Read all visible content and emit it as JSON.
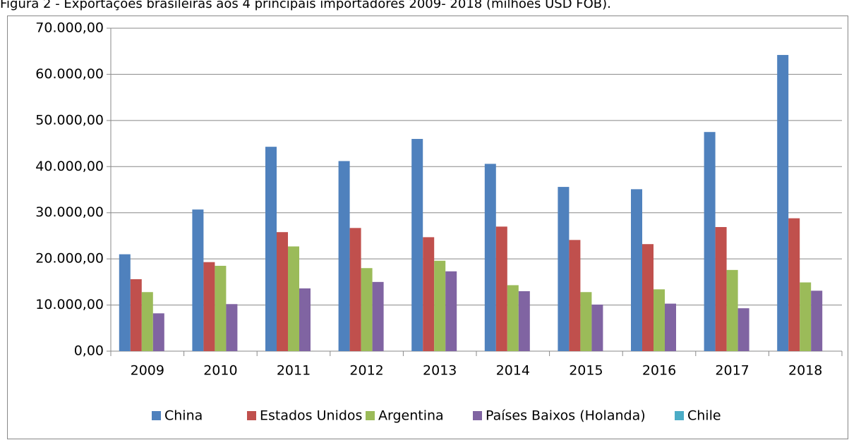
{
  "chart_data": {
    "type": "bar",
    "title": "Figura 2 - Exportações brasileiras aos 4 principais importadores 2009- 2018 (milhões USD FOB).",
    "categories": [
      "2009",
      "2010",
      "2011",
      "2012",
      "2013",
      "2014",
      "2015",
      "2016",
      "2017",
      "2018"
    ],
    "series": [
      {
        "name": "China",
        "color": "#4f81bd",
        "values": [
          21000,
          30700,
          44300,
          41200,
          46000,
          40600,
          35600,
          35100,
          47500,
          64200
        ]
      },
      {
        "name": "Estados Unidos",
        "color": "#c0504d",
        "values": [
          15600,
          19300,
          25800,
          26700,
          24700,
          27000,
          24100,
          23200,
          26900,
          28800
        ]
      },
      {
        "name": "Argentina",
        "color": "#9bbb59",
        "values": [
          12800,
          18500,
          22700,
          18000,
          19600,
          14300,
          12800,
          13400,
          17600,
          14900
        ]
      },
      {
        "name": "Países Baixos (Holanda)",
        "color": "#8064a2",
        "values": [
          8200,
          10200,
          13600,
          15000,
          17300,
          13000,
          10100,
          10300,
          9300,
          13100
        ]
      },
      {
        "name": "Chile",
        "color": "#4bacc6",
        "values": [
          null,
          null,
          null,
          null,
          null,
          null,
          null,
          null,
          null,
          null
        ]
      }
    ],
    "ylim": [
      0,
      70000
    ],
    "yticks": [
      {
        "value": 0,
        "label": "0,00"
      },
      {
        "value": 10000,
        "label": "10.000,00"
      },
      {
        "value": 20000,
        "label": "20.000,00"
      },
      {
        "value": 30000,
        "label": "30.000,00"
      },
      {
        "value": 40000,
        "label": "40.000,00"
      },
      {
        "value": 50000,
        "label": "50.000,00"
      },
      {
        "value": 60000,
        "label": "60.000,00"
      },
      {
        "value": 70000,
        "label": "70.000,00"
      }
    ],
    "grid": true,
    "legend": "bottom"
  }
}
